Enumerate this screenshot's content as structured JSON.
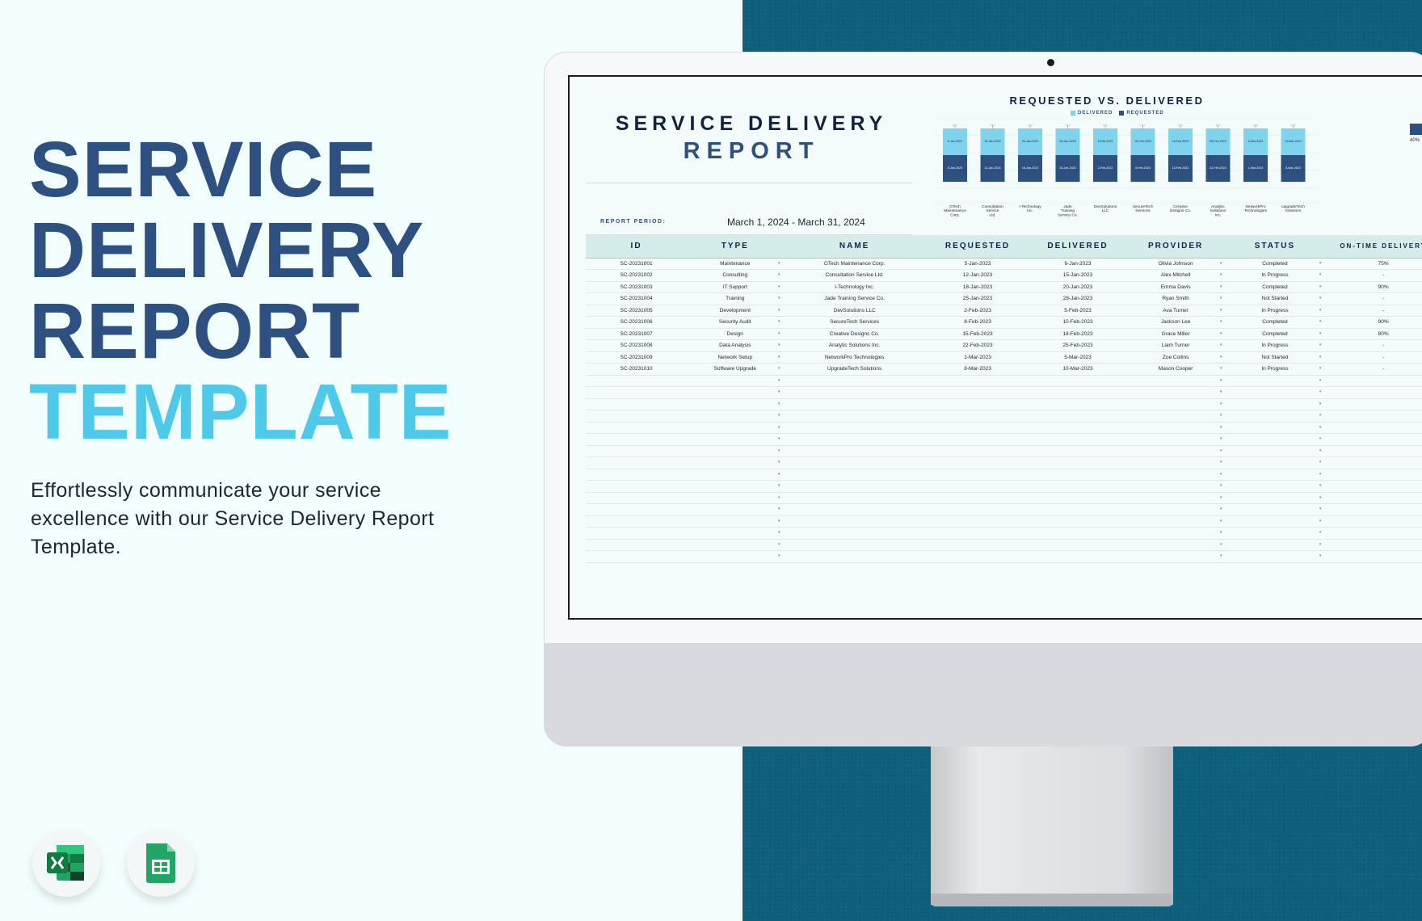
{
  "hero": {
    "line1": "SERVICE",
    "line2": "DELIVERY",
    "line3": "REPORT",
    "line4": "TEMPLATE",
    "description": "Effortlessly communicate your service excellence with our Service Delivery Report Template."
  },
  "badges": [
    {
      "name": "excel-icon"
    },
    {
      "name": "google-sheets-icon"
    }
  ],
  "report": {
    "title_line1": "SERVICE DELIVERY",
    "title_line2": "REPORT",
    "period_label": "REPORT PERIOD:",
    "period_value": "March 1, 2024 - March 31, 2024",
    "side_pct": "40%"
  },
  "chart_data": {
    "type": "bar",
    "title": "REQUESTED VS. DELIVERED",
    "legend": [
      "DELIVERED",
      "REQUESTED"
    ],
    "categories": [
      "GTech Maintenance Corp.",
      "Consultation Service Ltd.",
      "I-Technology Inc.",
      "Jade Training Service Co.",
      "DevSolutions LLC",
      "SecureTech Services",
      "Creative Designs Co.",
      "Analytic Solutions Inc.",
      "NetworkPro Technologies",
      "UpgradeTech Solutions"
    ],
    "series": [
      {
        "name": "DELIVERED",
        "values": [
          "6-Jan-2023",
          "15-Jan-2023",
          "20-Jan-2023",
          "28-Jan-2023",
          "5-Feb-2023",
          "10-Feb-2023",
          "18-Feb-2023",
          "25-Feb-2023",
          "5-Mar-2023",
          "10-Mar-2023"
        ]
      },
      {
        "name": "REQUESTED",
        "values": [
          "5-Jan-2023",
          "12-Jan-2023",
          "18-Jan-2023",
          "25-Jan-2023",
          "2-Feb-2023",
          "8-Feb-2023",
          "15-Feb-2023",
          "22-Feb-2023",
          "1-Mar-2023",
          "8-Mar-2023"
        ]
      }
    ],
    "colors": {
      "DELIVERED": "#7fd3ec",
      "REQUESTED": "#2e5080"
    }
  },
  "table": {
    "headers": [
      "ID",
      "TYPE",
      "NAME",
      "REQUESTED",
      "DELIVERED",
      "PROVIDER",
      "STATUS",
      "ON-TIME DELIVERY"
    ],
    "rows": [
      [
        "SC-20231001",
        "Maintenance",
        "GTech Maintenance Corp.",
        "5-Jan-2023",
        "6-Jan-2023",
        "Olivia Johnson",
        "Completed",
        "75%"
      ],
      [
        "SC-20231002",
        "Consulting",
        "Consultation Service Ltd.",
        "12-Jan-2023",
        "15-Jan-2023",
        "Alex Mitchell",
        "In Progress",
        "-"
      ],
      [
        "SC-20231003",
        "IT Support",
        "I-Technology Inc.",
        "18-Jan-2023",
        "20-Jan-2023",
        "Emma Davis",
        "Completed",
        "90%"
      ],
      [
        "SC-20231004",
        "Training",
        "Jade Training Service Co.",
        "25-Jan-2023",
        "28-Jan-2023",
        "Ryan Smith",
        "Not Started",
        "-"
      ],
      [
        "SC-20231005",
        "Development",
        "DevSolutions LLC",
        "2-Feb-2023",
        "5-Feb-2023",
        "Ava Turner",
        "In Progress",
        "-"
      ],
      [
        "SC-20231006",
        "Security Audit",
        "SecureTech Services",
        "8-Feb-2023",
        "10-Feb-2023",
        "Jackson Lee",
        "Completed",
        "90%"
      ],
      [
        "SC-20231007",
        "Design",
        "Creative Designs Co.",
        "15-Feb-2023",
        "18-Feb-2023",
        "Grace Miller",
        "Completed",
        "80%"
      ],
      [
        "SC-20231008",
        "Data Analysis",
        "Analytic Solutions Inc.",
        "22-Feb-2023",
        "25-Feb-2023",
        "Liam Turner",
        "In Progress",
        "-"
      ],
      [
        "SC-20231009",
        "Network Setup",
        "NetworkPro Technologies",
        "1-Mar-2023",
        "5-Mar-2023",
        "Zoe Collins",
        "Not Started",
        "-"
      ],
      [
        "SC-20231010",
        "Software Upgrade",
        "UpgradeTech Solutions",
        "8-Mar-2023",
        "10-Mar-2023",
        "Mason Cooper",
        "In Progress",
        "-"
      ]
    ],
    "dropdown_glyph": "▾"
  }
}
